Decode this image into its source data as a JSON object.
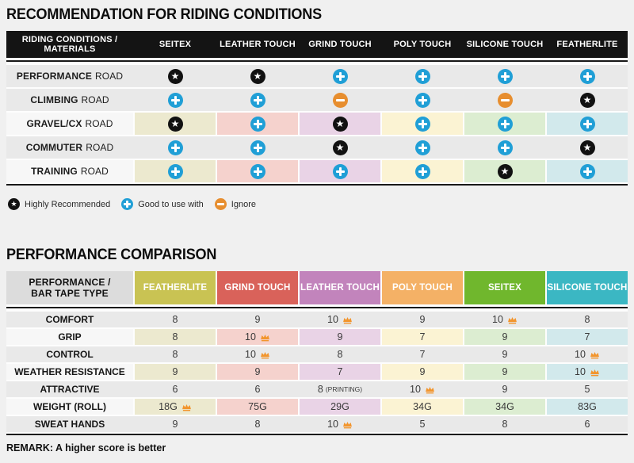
{
  "section1": {
    "title": "RECOMMENDATION FOR RIDING CONDITIONS"
  },
  "table1": {
    "header": {
      "label_line1": "RIDING CONDITIONS /",
      "label_line2": "MATERIALS",
      "columns": [
        "SEITEX",
        "LEATHER TOUCH",
        "GRIND TOUCH",
        "POLY TOUCH",
        "SILICONE TOUCH",
        "FEATHERLITE"
      ]
    },
    "rows": [
      {
        "condition": "PERFORMANCE",
        "suffix": "ROAD",
        "tinted": false,
        "ratings": [
          "star",
          "star",
          "plus",
          "plus",
          "plus",
          "plus"
        ]
      },
      {
        "condition": "CLIMBING",
        "suffix": "ROAD",
        "tinted": false,
        "ratings": [
          "plus",
          "plus",
          "minus",
          "plus",
          "minus",
          "star"
        ]
      },
      {
        "condition": "GRAVEL/CX",
        "suffix": "ROAD",
        "tinted": true,
        "ratings": [
          "star",
          "plus",
          "star",
          "plus",
          "plus",
          "plus"
        ]
      },
      {
        "condition": "COMMUTER",
        "suffix": "ROAD",
        "tinted": false,
        "ratings": [
          "plus",
          "plus",
          "star",
          "plus",
          "plus",
          "star"
        ]
      },
      {
        "condition": "TRAINING",
        "suffix": "ROAD",
        "tinted": true,
        "ratings": [
          "plus",
          "plus",
          "plus",
          "plus",
          "star",
          "plus"
        ]
      }
    ]
  },
  "legend": {
    "items": [
      {
        "type": "star",
        "icon": "star-icon",
        "label": "Highly Recommended"
      },
      {
        "type": "plus",
        "icon": "plus-icon",
        "label": "Good to use with"
      },
      {
        "type": "minus",
        "icon": "minus-icon",
        "label": "Ignore"
      }
    ]
  },
  "section2": {
    "title": "PERFORMANCE COMPARISON"
  },
  "table2": {
    "header": {
      "label_line1": "PERFORMANCE /",
      "label_line2": "BAR TAPE TYPE",
      "label_bg": "#dcdcdc",
      "columns": [
        {
          "label": "FEATHERLITE",
          "color": "#c9c353"
        },
        {
          "label": "GRIND TOUCH",
          "color": "#d9625a"
        },
        {
          "label": "LEATHER TOUCH",
          "color": "#c284bc"
        },
        {
          "label": "POLY TOUCH",
          "color": "#f4b166"
        },
        {
          "label": "SEITEX",
          "color": "#70b72d"
        },
        {
          "label": "SILICONE TOUCH",
          "color": "#3bb7c3"
        }
      ]
    },
    "rows": [
      {
        "metric": "COMFORT",
        "tinted": false,
        "values": [
          {
            "v": "8"
          },
          {
            "v": "9"
          },
          {
            "v": "10",
            "crown": true
          },
          {
            "v": "9"
          },
          {
            "v": "10",
            "crown": true
          },
          {
            "v": "8"
          }
        ]
      },
      {
        "metric": "GRIP",
        "tinted": true,
        "values": [
          {
            "v": "8"
          },
          {
            "v": "10",
            "crown": true
          },
          {
            "v": "9"
          },
          {
            "v": "7"
          },
          {
            "v": "9"
          },
          {
            "v": "7"
          }
        ]
      },
      {
        "metric": "CONTROL",
        "tinted": false,
        "values": [
          {
            "v": "8"
          },
          {
            "v": "10",
            "crown": true
          },
          {
            "v": "8"
          },
          {
            "v": "7"
          },
          {
            "v": "9"
          },
          {
            "v": "10",
            "crown": true
          }
        ]
      },
      {
        "metric": "WEATHER RESISTANCE",
        "tinted": true,
        "values": [
          {
            "v": "9"
          },
          {
            "v": "9"
          },
          {
            "v": "7"
          },
          {
            "v": "9"
          },
          {
            "v": "9"
          },
          {
            "v": "10",
            "crown": true
          }
        ]
      },
      {
        "metric": "ATTRACTIVE",
        "tinted": false,
        "values": [
          {
            "v": "6"
          },
          {
            "v": "6"
          },
          {
            "v": "8",
            "note": "(PRINTING)"
          },
          {
            "v": "10",
            "crown": true
          },
          {
            "v": "9"
          },
          {
            "v": "5"
          }
        ]
      },
      {
        "metric": "WEIGHT (ROLL)",
        "tinted": true,
        "values": [
          {
            "v": "18G",
            "crown": true
          },
          {
            "v": "75G"
          },
          {
            "v": "29G"
          },
          {
            "v": "34G"
          },
          {
            "v": "34G"
          },
          {
            "v": "83G"
          }
        ]
      },
      {
        "metric": "SWEAT HANDS",
        "tinted": false,
        "values": [
          {
            "v": "9"
          },
          {
            "v": "8"
          },
          {
            "v": "10",
            "crown": true
          },
          {
            "v": "5"
          },
          {
            "v": "8"
          },
          {
            "v": "6"
          }
        ]
      }
    ]
  },
  "remark": {
    "text": "REMARK: A higher score is better"
  },
  "colors": {
    "star": "#111111",
    "plus": "#209fd6",
    "minus": "#e78e2f",
    "crown": "#f2952d",
    "row_gray": "#e9e9e9",
    "row_light": "#f7f7f7",
    "tints": [
      "#ece9cf",
      "#f5d2cd",
      "#e9d3e6",
      "#fbf3d3",
      "#dcedd1",
      "#d2e9ec"
    ]
  },
  "glyphs": {
    "star": "★"
  },
  "chart_data": [
    {
      "type": "table",
      "title": "RECOMMENDATION FOR RIDING CONDITIONS",
      "columns": [
        "RIDING CONDITIONS / MATERIALS",
        "SEITEX",
        "LEATHER TOUCH",
        "GRIND TOUCH",
        "POLY TOUCH",
        "SILICONE TOUCH",
        "FEATHERLITE"
      ],
      "legend": {
        "star": "Highly Recommended",
        "plus": "Good to use with",
        "minus": "Ignore"
      },
      "rows": [
        [
          "PERFORMANCE ROAD",
          "star",
          "star",
          "plus",
          "plus",
          "plus",
          "plus"
        ],
        [
          "CLIMBING ROAD",
          "plus",
          "plus",
          "minus",
          "plus",
          "minus",
          "star"
        ],
        [
          "GRAVEL/CX ROAD",
          "star",
          "plus",
          "star",
          "plus",
          "plus",
          "plus"
        ],
        [
          "COMMUTER ROAD",
          "plus",
          "plus",
          "star",
          "plus",
          "plus",
          "star"
        ],
        [
          "TRAINING ROAD",
          "plus",
          "plus",
          "plus",
          "plus",
          "star",
          "plus"
        ]
      ]
    },
    {
      "type": "table",
      "title": "PERFORMANCE COMPARISON",
      "crown_marker": "*",
      "columns": [
        "PERFORMANCE / BAR TAPE TYPE",
        "FEATHERLITE",
        "GRIND TOUCH",
        "LEATHER TOUCH",
        "POLY TOUCH",
        "SEITEX",
        "SILICONE TOUCH"
      ],
      "rows": [
        [
          "COMFORT",
          "8",
          "9",
          "10*",
          "9",
          "10*",
          "8"
        ],
        [
          "GRIP",
          "8",
          "10*",
          "9",
          "7",
          "9",
          "7"
        ],
        [
          "CONTROL",
          "8",
          "10*",
          "8",
          "7",
          "9",
          "10*"
        ],
        [
          "WEATHER RESISTANCE",
          "9",
          "9",
          "7",
          "9",
          "9",
          "10*"
        ],
        [
          "ATTRACTIVE",
          "6",
          "6",
          "8 (PRINTING)",
          "10*",
          "9",
          "5"
        ],
        [
          "WEIGHT (ROLL)",
          "18G*",
          "75G",
          "29G",
          "34G",
          "34G",
          "83G"
        ],
        [
          "SWEAT HANDS",
          "9",
          "8",
          "10*",
          "5",
          "8",
          "6"
        ]
      ],
      "remark": "REMARK: A higher score is better"
    }
  ]
}
